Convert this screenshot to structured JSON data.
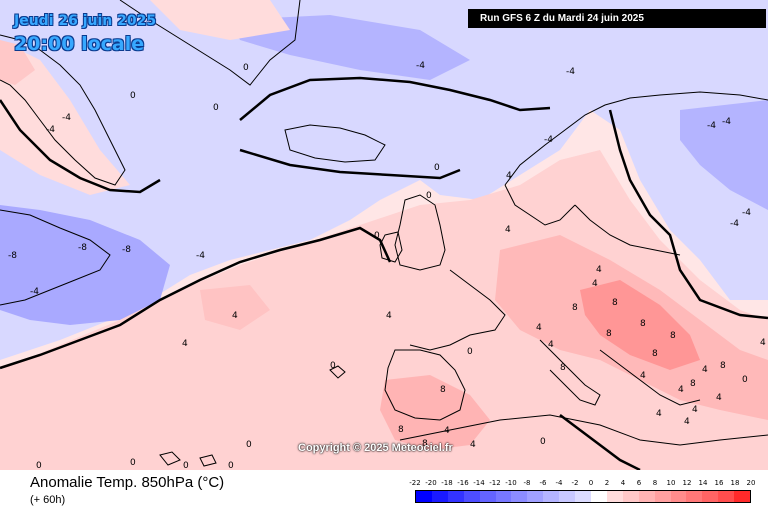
{
  "header": {
    "date_line_1": "Jeudi 26 juin 2025",
    "date_line_2": "20:00 locale",
    "run_info": "Run GFS 6 Z du Mardi 24 juin 2025"
  },
  "copyright": "Copyright © 2025 Meteociel.fr",
  "legend": {
    "title": "Anomalie Temp. 850hPa (°C)",
    "forecast_offset": "(+ 60h)",
    "scale_labels": [
      "-22",
      "-20",
      "-18",
      "-16",
      "-14",
      "-12",
      "-10",
      "-8",
      "-6",
      "-4",
      "-2",
      "0",
      "2",
      "4",
      "6",
      "8",
      "10",
      "12",
      "14",
      "16",
      "18",
      "20"
    ],
    "scale_colors": [
      "#0000ff",
      "#1a1aff",
      "#3333ff",
      "#4d4dff",
      "#6464ff",
      "#7878ff",
      "#8c8cff",
      "#a0a0ff",
      "#b4b4ff",
      "#c8c8ff",
      "#dcdcff",
      "#ffffff",
      "#ffdcdc",
      "#ffc8c8",
      "#ffb4b4",
      "#ffa0a0",
      "#ff8c8c",
      "#ff7878",
      "#ff6464",
      "#ff4d4d",
      "#ff2a2a"
    ]
  },
  "map": {
    "region": "Atlantique Nord / Europe",
    "contour_labels": [
      "0",
      "0",
      "0",
      "0",
      "0",
      "0",
      "0",
      "0",
      "0",
      "0",
      "0",
      "0",
      "0",
      "0",
      "0",
      "-4",
      "-4",
      "-4",
      "-4",
      "-4",
      "-4",
      "-4",
      "-4",
      "-4",
      "-4",
      "-4",
      "-8",
      "-8",
      "-8",
      "4",
      "4",
      "4",
      "4",
      "4",
      "4",
      "4",
      "4",
      "4",
      "4",
      "4",
      "4",
      "4",
      "4",
      "4",
      "4",
      "4",
      "4",
      "4",
      "8",
      "8",
      "8",
      "8",
      "8",
      "8",
      "8",
      "8",
      "8",
      "8",
      "8",
      "8"
    ],
    "colors": {
      "cold_strong": "#8c8cff",
      "cold": "#c8c8ff",
      "neutral": "#ffffff",
      "warm": "#ffdcdc",
      "warm_medium": "#ffb4b4",
      "warm_strong": "#ff8c8c",
      "coastline": "#000000"
    }
  }
}
